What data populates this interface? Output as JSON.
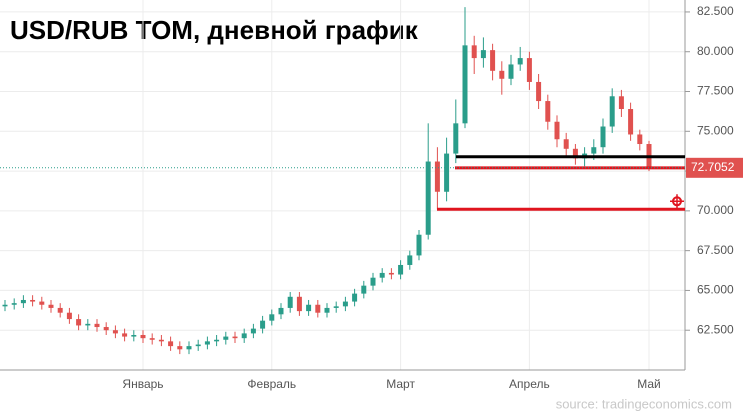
{
  "chart_data": {
    "type": "candlestick",
    "title": "USD/RUB TOM, дневной график",
    "source": "source: tradingeconomics.com",
    "categories": [
      null,
      null,
      null,
      null,
      null,
      null,
      null,
      null,
      null,
      null,
      null,
      null,
      null,
      null,
      null,
      "Январь",
      null,
      null,
      null,
      null,
      null,
      null,
      null,
      null,
      null,
      null,
      null,
      null,
      null,
      "Февраль",
      null,
      null,
      null,
      null,
      null,
      null,
      null,
      null,
      null,
      null,
      null,
      null,
      null,
      "Март",
      null,
      null,
      null,
      null,
      null,
      null,
      null,
      null,
      null,
      null,
      null,
      null,
      null,
      "Апрель",
      null,
      null,
      null,
      null,
      null,
      null,
      null,
      null,
      null,
      null,
      null,
      null,
      "Май"
    ],
    "open": [
      64.0,
      64.1,
      64.2,
      64.4,
      64.3,
      64.1,
      63.9,
      63.6,
      63.2,
      62.8,
      62.9,
      62.7,
      62.5,
      62.3,
      62.1,
      62.2,
      62.0,
      61.9,
      61.8,
      61.5,
      61.3,
      61.5,
      61.6,
      61.8,
      61.9,
      62.1,
      62.0,
      62.3,
      62.6,
      63.1,
      63.5,
      63.9,
      64.6,
      63.7,
      64.1,
      63.6,
      63.9,
      64.0,
      64.3,
      64.8,
      65.3,
      65.8,
      66.1,
      66.0,
      66.6,
      67.2,
      68.5,
      73.1,
      71.2,
      73.6,
      75.5,
      80.4,
      79.6,
      80.1,
      78.8,
      78.3,
      79.2,
      79.6,
      78.1,
      76.9,
      75.6,
      74.5,
      73.9,
      73.3,
      73.6,
      74.0,
      75.3,
      77.2,
      76.4,
      74.8,
      74.2
    ],
    "high": [
      64.4,
      64.5,
      64.7,
      64.7,
      64.6,
      64.4,
      64.2,
      63.9,
      63.5,
      63.2,
      63.2,
      63.0,
      62.8,
      62.6,
      62.5,
      62.5,
      62.3,
      62.2,
      62.1,
      61.8,
      61.8,
      61.9,
      62.1,
      62.2,
      62.4,
      62.4,
      62.6,
      62.9,
      63.4,
      63.8,
      64.2,
      64.9,
      64.9,
      64.4,
      64.4,
      64.2,
      64.3,
      64.6,
      65.1,
      65.6,
      66.1,
      66.4,
      66.4,
      66.9,
      67.5,
      68.8,
      75.5,
      74.0,
      74.6,
      77.0,
      82.8,
      81.0,
      80.9,
      80.5,
      79.4,
      79.8,
      80.3,
      80.0,
      78.6,
      77.3,
      76.0,
      74.9,
      74.2,
      74.0,
      74.5,
      75.8,
      77.7,
      77.6,
      76.8,
      75.1,
      74.4
    ],
    "low": [
      63.7,
      63.8,
      63.9,
      64.0,
      63.8,
      63.6,
      63.3,
      62.9,
      62.5,
      62.5,
      62.4,
      62.2,
      62.0,
      61.8,
      61.8,
      61.7,
      61.6,
      61.5,
      61.2,
      61.0,
      61.0,
      61.2,
      61.3,
      61.5,
      61.6,
      61.7,
      61.7,
      62.0,
      62.3,
      62.8,
      63.2,
      63.6,
      63.4,
      63.4,
      63.3,
      63.3,
      63.6,
      63.7,
      64.0,
      64.5,
      65.0,
      65.5,
      65.7,
      65.7,
      66.3,
      66.9,
      68.2,
      70.1,
      70.6,
      73.0,
      75.2,
      78.6,
      79.0,
      78.2,
      77.3,
      77.9,
      78.8,
      77.6,
      76.4,
      75.1,
      74.0,
      73.4,
      72.9,
      72.8,
      73.2,
      73.6,
      74.9,
      75.9,
      74.4,
      73.8,
      72.5
    ],
    "close": [
      64.1,
      64.2,
      64.4,
      64.3,
      64.1,
      63.9,
      63.6,
      63.2,
      62.8,
      62.9,
      62.7,
      62.5,
      62.3,
      62.1,
      62.2,
      62.0,
      61.9,
      61.8,
      61.5,
      61.3,
      61.5,
      61.6,
      61.8,
      61.9,
      62.1,
      62.0,
      62.3,
      62.6,
      63.1,
      63.5,
      63.9,
      64.6,
      63.7,
      64.1,
      63.6,
      63.9,
      64.0,
      64.3,
      64.8,
      65.3,
      65.8,
      66.1,
      66.0,
      66.6,
      67.2,
      68.5,
      73.1,
      71.2,
      73.6,
      75.5,
      80.4,
      79.6,
      80.1,
      78.8,
      78.3,
      79.2,
      79.6,
      78.1,
      76.9,
      75.6,
      74.5,
      73.9,
      73.3,
      73.6,
      74.0,
      75.3,
      77.2,
      76.4,
      74.8,
      74.2,
      72.7052
    ],
    "up_color": "#2a9d8a",
    "down_color": "#e0514f",
    "levels": [
      {
        "value": 73.4,
        "color": "#000000"
      },
      {
        "value": 72.7,
        "color": "#e0141e"
      },
      {
        "value": 70.1,
        "color": "#e0141e"
      }
    ],
    "ylim": [
      60,
      83.25
    ],
    "yticks": [
      {
        "value": 62.5,
        "label": "62.500"
      },
      {
        "value": 65,
        "label": "65.000"
      },
      {
        "value": 67.5,
        "label": "67.500"
      },
      {
        "value": 70,
        "label": "70.000"
      },
      {
        "value": 72.5,
        "label": "72.500"
      },
      {
        "value": 75,
        "label": "75.000"
      },
      {
        "value": 77.5,
        "label": "77.500"
      },
      {
        "value": 80,
        "label": "80.000"
      },
      {
        "value": 82.5,
        "label": "82.500"
      }
    ],
    "grid": true
  }
}
